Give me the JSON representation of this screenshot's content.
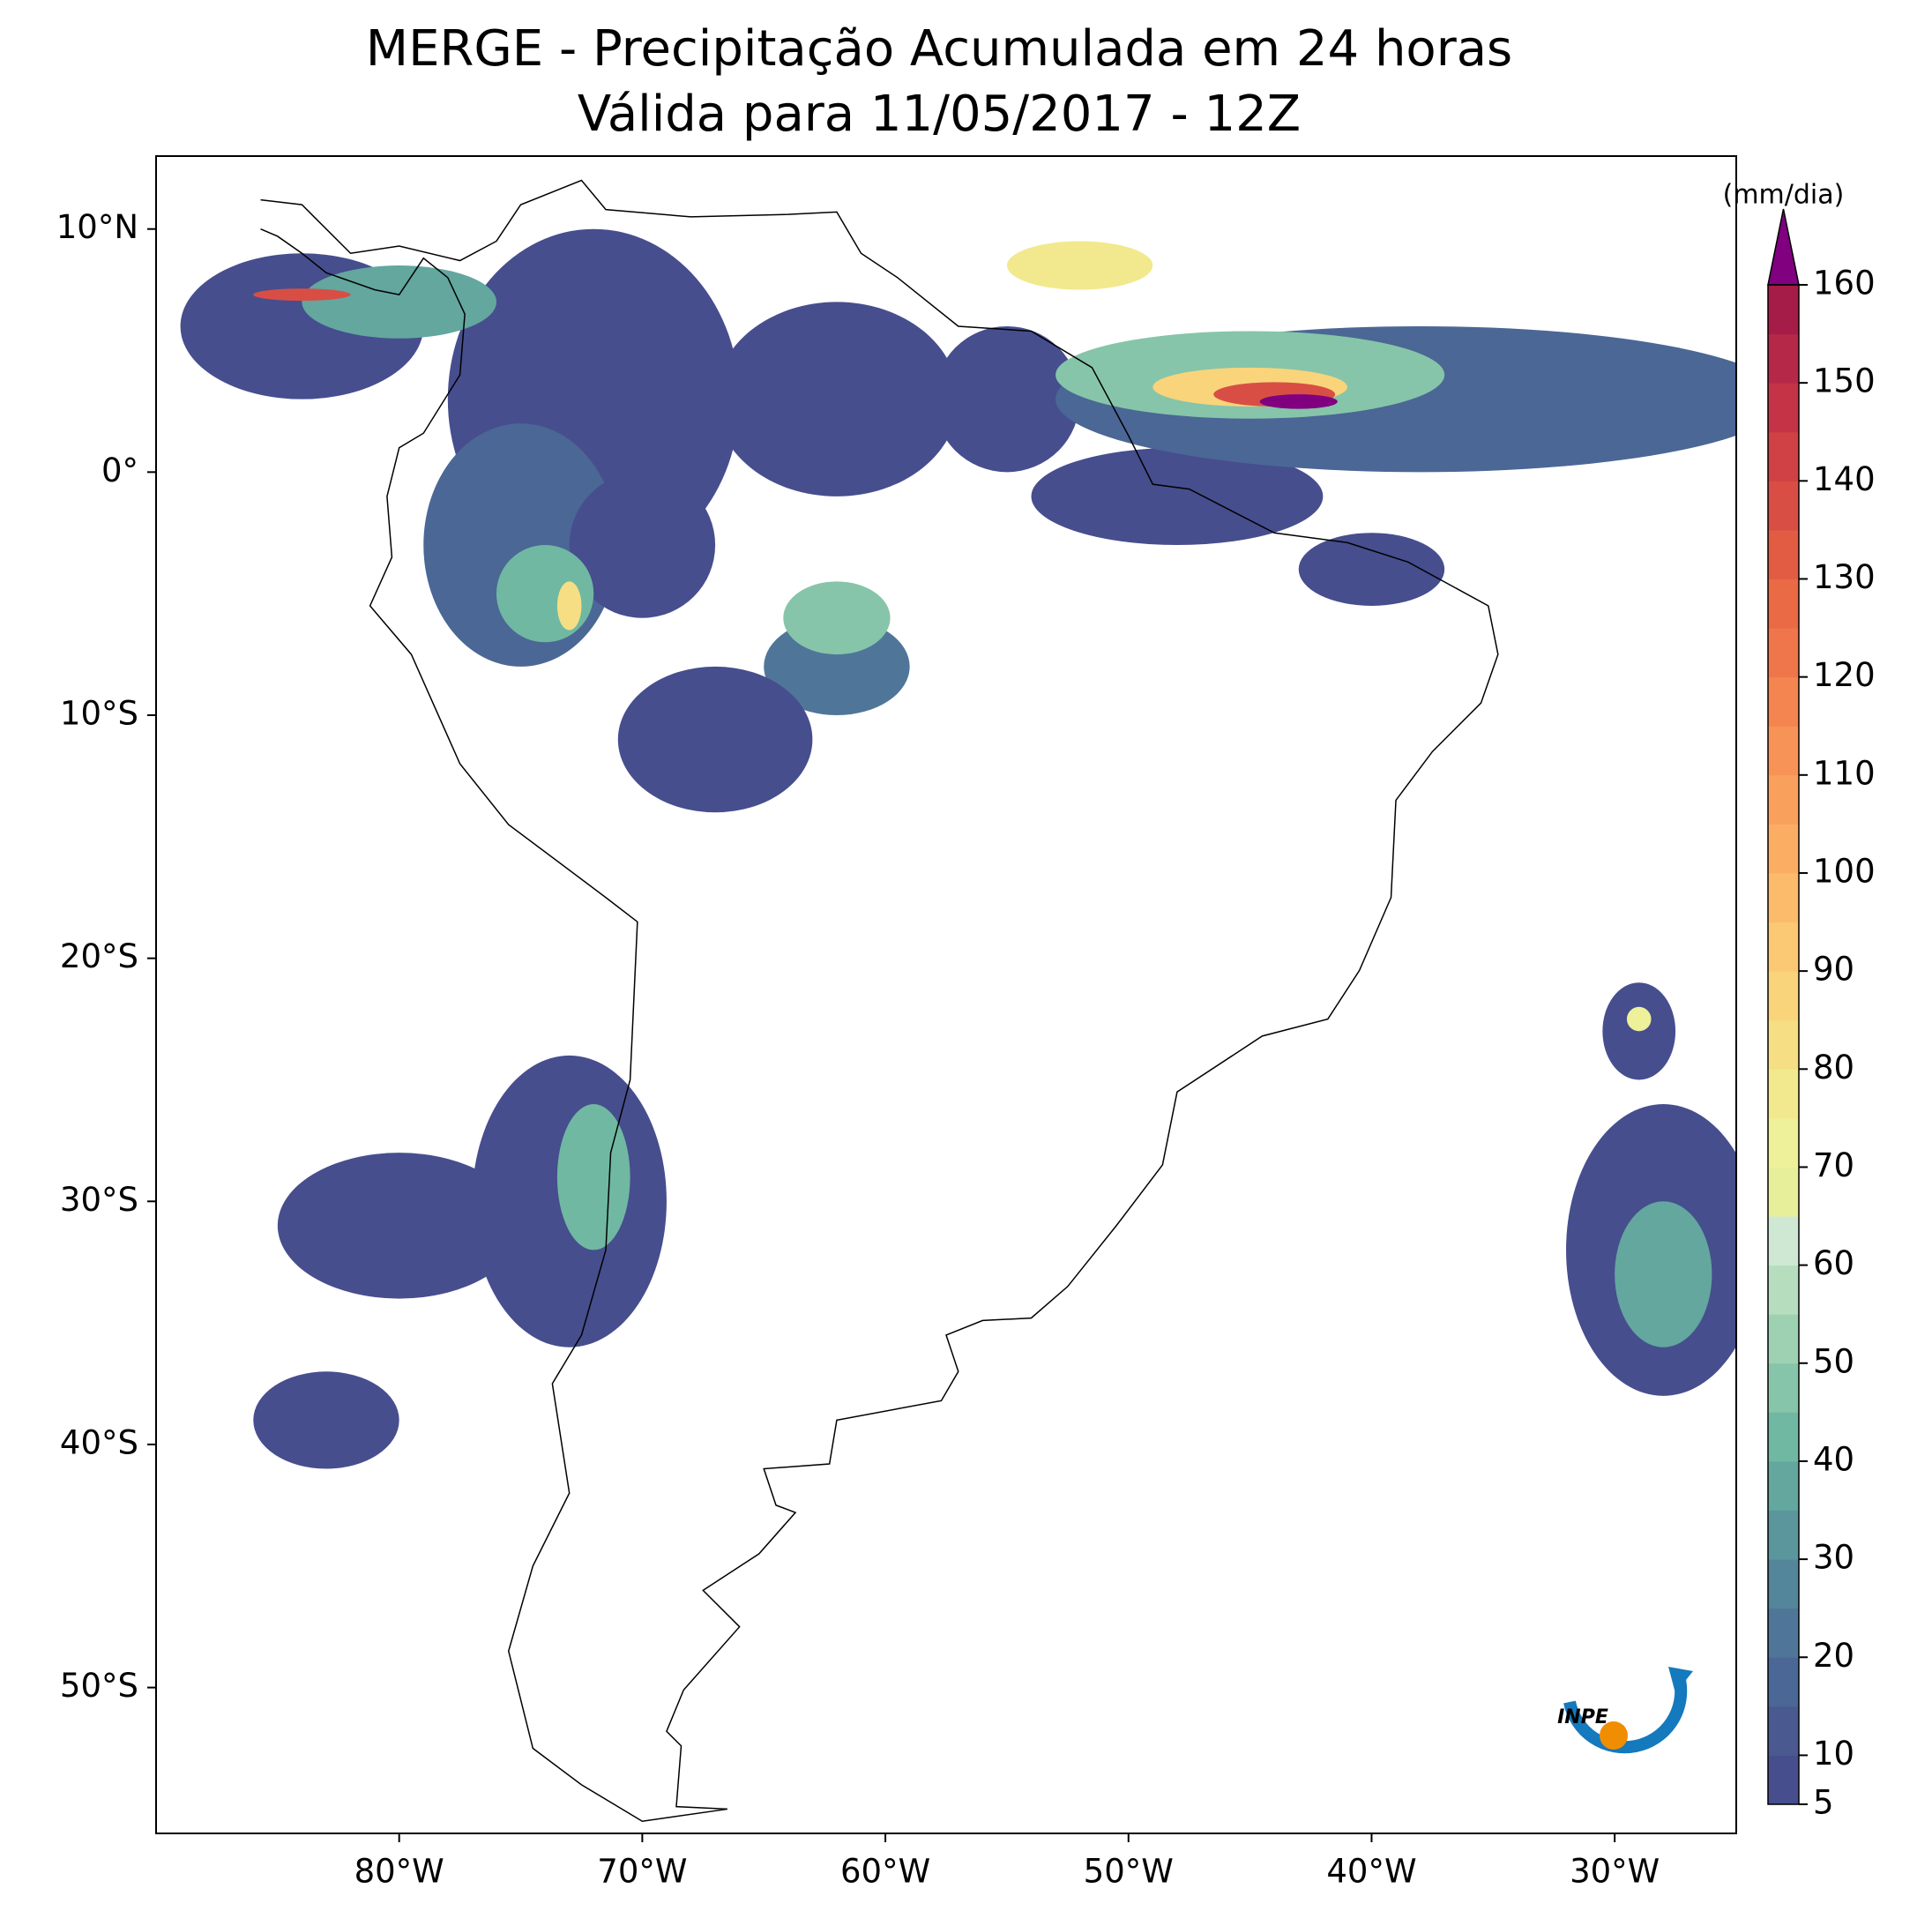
{
  "header": {
    "title": "MERGE - Precipitação Acumulada em 24 horas",
    "subtitle": "Válida para 11/05/2017 - 12Z"
  },
  "map": {
    "lonlim": [
      -90,
      -25
    ],
    "latlim": [
      -56,
      13
    ],
    "lon_ticks": [
      {
        "value": -80,
        "label": "80°W"
      },
      {
        "value": -70,
        "label": "70°W"
      },
      {
        "value": -60,
        "label": "60°W"
      },
      {
        "value": -50,
        "label": "50°W"
      },
      {
        "value": -40,
        "label": "40°W"
      },
      {
        "value": -30,
        "label": "30°W"
      }
    ],
    "lat_ticks": [
      {
        "value": 10,
        "label": "10°N"
      },
      {
        "value": 0,
        "label": "0°"
      },
      {
        "value": -10,
        "label": "10°S"
      },
      {
        "value": -20,
        "label": "20°S"
      },
      {
        "value": -30,
        "label": "30°S"
      },
      {
        "value": -40,
        "label": "40°S"
      },
      {
        "value": -50,
        "label": "50°S"
      }
    ]
  },
  "colorbar": {
    "label": "(mm/dia)",
    "lim": [
      5,
      160
    ],
    "ticks": [
      5,
      10,
      20,
      30,
      40,
      50,
      60,
      70,
      80,
      90,
      100,
      110,
      120,
      130,
      140,
      150,
      160
    ],
    "colors": [
      "#464e8e",
      "#4a5990",
      "#4b6795",
      "#4f7699",
      "#53859b",
      "#5a969c",
      "#63a79e",
      "#70b8a2",
      "#86c5a9",
      "#9ed1b2",
      "#b7ddbf",
      "#cfe8d4",
      "#e7ef9a",
      "#eef09a",
      "#f2e98e",
      "#f6de84",
      "#f9d47b",
      "#fbc873",
      "#fcbb6b",
      "#fcad64",
      "#faa05d",
      "#f89357",
      "#f48450",
      "#ef764a",
      "#e96a45",
      "#e25c43",
      "#d94e44",
      "#cf4145",
      "#c43446",
      "#b62847",
      "#a51c48"
    ],
    "extend_color": "#800080"
  },
  "logo": {
    "text": "INPE"
  }
}
